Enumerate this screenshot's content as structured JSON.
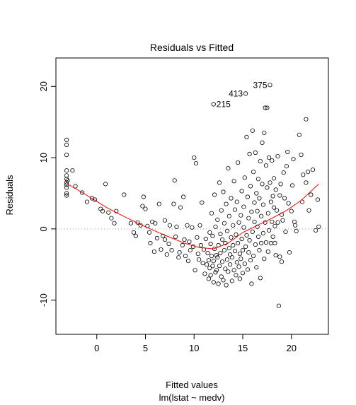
{
  "chart_data": {
    "type": "scatter",
    "title": "Residuals vs Fitted",
    "xlabel": "Fitted values",
    "sublabel": "lm(lstat ~ medv)",
    "ylabel": "Residuals",
    "xlim": [
      -4.2,
      23.8
    ],
    "ylim": [
      -14.8,
      24.0
    ],
    "x_ticks": [
      0,
      5,
      10,
      15,
      20
    ],
    "y_ticks": [
      -10,
      0,
      10,
      20
    ],
    "x_tick_labels": [
      "0",
      "5",
      "10",
      "15",
      "20"
    ],
    "y_tick_labels": [
      "-10",
      "0",
      "10",
      "20"
    ],
    "reference_line": 0,
    "smoother_color": "#ff0000",
    "reference_color": "#9a9a9a",
    "labeled_points": [
      {
        "label": "375",
        "x": 17.8,
        "y": 20.2
      },
      {
        "label": "413",
        "x": 15.3,
        "y": 19.0
      },
      {
        "label": "215",
        "x": 12.0,
        "y": 17.5
      }
    ],
    "smoother": [
      [
        -3.0,
        6.3
      ],
      [
        -1.0,
        4.7
      ],
      [
        1.0,
        3.0
      ],
      [
        3.0,
        1.6
      ],
      [
        5.0,
        0.3
      ],
      [
        7.0,
        -0.9
      ],
      [
        9.0,
        -2.0
      ],
      [
        10.5,
        -2.6
      ],
      [
        12.0,
        -2.8
      ],
      [
        13.5,
        -2.0
      ],
      [
        15.0,
        -0.5
      ],
      [
        16.5,
        0.5
      ],
      [
        18.0,
        1.5
      ],
      [
        19.5,
        2.6
      ],
      [
        21.0,
        4.0
      ],
      [
        22.8,
        6.3
      ]
    ],
    "points": [
      [
        -3.1,
        12.5
      ],
      [
        -3.1,
        11.8
      ],
      [
        -3.1,
        10.4
      ],
      [
        -3.1,
        8.2
      ],
      [
        -3.1,
        7.5
      ],
      [
        -3.1,
        7.0
      ],
      [
        -3.1,
        6.5
      ],
      [
        -3.1,
        6.2
      ],
      [
        -3.1,
        5.8
      ],
      [
        -3.1,
        5.0
      ],
      [
        -3.1,
        4.7
      ],
      [
        -3.0,
        6.8
      ],
      [
        -2.5,
        8.2
      ],
      [
        -2.2,
        6.0
      ],
      [
        -1.5,
        5.1
      ],
      [
        -1.0,
        3.8
      ],
      [
        -0.5,
        4.3
      ],
      [
        -0.2,
        4.1
      ],
      [
        0.4,
        2.8
      ],
      [
        0.6,
        2.5
      ],
      [
        0.9,
        6.3
      ],
      [
        1.2,
        2.3
      ],
      [
        1.5,
        1.5
      ],
      [
        1.8,
        0.8
      ],
      [
        2.0,
        2.5
      ],
      [
        2.8,
        4.8
      ],
      [
        3.5,
        0.8
      ],
      [
        3.8,
        -0.5
      ],
      [
        4.0,
        -1.0
      ],
      [
        4.2,
        0.9
      ],
      [
        4.5,
        0.5
      ],
      [
        4.7,
        3.2
      ],
      [
        4.8,
        4.5
      ],
      [
        5.0,
        2.8
      ],
      [
        5.2,
        0.4
      ],
      [
        5.4,
        -0.5
      ],
      [
        5.5,
        -2.0
      ],
      [
        5.7,
        1.0
      ],
      [
        5.9,
        -3.2
      ],
      [
        6.0,
        0.8
      ],
      [
        6.2,
        -1.3
      ],
      [
        6.4,
        3.5
      ],
      [
        6.6,
        -2.9
      ],
      [
        6.8,
        -1.0
      ],
      [
        7.0,
        -1.5
      ],
      [
        7.0,
        1.2
      ],
      [
        7.2,
        -3.6
      ],
      [
        7.4,
        -2.1
      ],
      [
        7.5,
        0.5
      ],
      [
        7.7,
        -3.0
      ],
      [
        7.9,
        3.5
      ],
      [
        8.0,
        6.8
      ],
      [
        8.1,
        -1.1
      ],
      [
        8.2,
        0.3
      ],
      [
        8.4,
        -4.0
      ],
      [
        8.5,
        -3.3
      ],
      [
        8.6,
        3.0
      ],
      [
        8.8,
        -2.3
      ],
      [
        8.9,
        4.5
      ],
      [
        9.0,
        -1.5
      ],
      [
        9.1,
        -3.8
      ],
      [
        9.3,
        0.5
      ],
      [
        9.4,
        -4.5
      ],
      [
        9.5,
        -1.8
      ],
      [
        9.6,
        -3.0
      ],
      [
        9.8,
        0.2
      ],
      [
        9.9,
        -2.5
      ],
      [
        10.0,
        10.0
      ],
      [
        10.1,
        -5.8
      ],
      [
        10.2,
        9.2
      ],
      [
        10.3,
        -1.2
      ],
      [
        10.4,
        -3.5
      ],
      [
        10.5,
        -4.3
      ],
      [
        10.6,
        0.5
      ],
      [
        10.7,
        -2.3
      ],
      [
        10.8,
        3.7
      ],
      [
        10.9,
        -4.8
      ],
      [
        11.0,
        -2.9
      ],
      [
        11.1,
        -6.3
      ],
      [
        11.2,
        -1.4
      ],
      [
        11.3,
        -5.0
      ],
      [
        11.4,
        -3.4
      ],
      [
        11.5,
        -7.0
      ],
      [
        11.5,
        -4.4
      ],
      [
        11.6,
        -0.5
      ],
      [
        11.6,
        -5.5
      ],
      [
        11.7,
        -2.1
      ],
      [
        11.7,
        -6.5
      ],
      [
        11.8,
        -3.8
      ],
      [
        11.8,
        2.2
      ],
      [
        11.9,
        -5.2
      ],
      [
        11.9,
        -1.0
      ],
      [
        12.0,
        17.5
      ],
      [
        12.0,
        -4.5
      ],
      [
        12.0,
        -7.5
      ],
      [
        12.1,
        -2.8
      ],
      [
        12.1,
        4.8
      ],
      [
        12.2,
        -6.1
      ],
      [
        12.2,
        0.3
      ],
      [
        12.3,
        -3.7
      ],
      [
        12.3,
        -5.8
      ],
      [
        12.4,
        1.3
      ],
      [
        12.4,
        -4.0
      ],
      [
        12.5,
        -7.7
      ],
      [
        12.5,
        -2.3
      ],
      [
        12.6,
        6.5
      ],
      [
        12.6,
        -5.2
      ],
      [
        12.7,
        -0.7
      ],
      [
        12.7,
        -3.4
      ],
      [
        12.8,
        -6.7
      ],
      [
        12.8,
        2.6
      ],
      [
        12.9,
        -4.6
      ],
      [
        12.9,
        -1.5
      ],
      [
        13.0,
        -7.2
      ],
      [
        13.0,
        5.2
      ],
      [
        13.1,
        -3.0
      ],
      [
        13.1,
        0.8
      ],
      [
        13.2,
        -5.6
      ],
      [
        13.2,
        -2.0
      ],
      [
        13.3,
        -7.9
      ],
      [
        13.3,
        3.5
      ],
      [
        13.4,
        -4.3
      ],
      [
        13.4,
        -0.3
      ],
      [
        13.5,
        8.5
      ],
      [
        13.5,
        -6.0
      ],
      [
        13.6,
        -2.7
      ],
      [
        13.6,
        1.8
      ],
      [
        13.7,
        -5.0
      ],
      [
        13.7,
        -3.6
      ],
      [
        13.8,
        -1.2
      ],
      [
        13.8,
        4.3
      ],
      [
        13.9,
        -7.3
      ],
      [
        13.9,
        -4.0
      ],
      [
        14.0,
        0.5
      ],
      [
        14.0,
        -2.3
      ],
      [
        14.1,
        -5.8
      ],
      [
        14.1,
        6.7
      ],
      [
        14.2,
        -3.1
      ],
      [
        14.2,
        2.7
      ],
      [
        14.3,
        -6.5
      ],
      [
        14.3,
        -0.8
      ],
      [
        14.4,
        -4.7
      ],
      [
        14.4,
        3.8
      ],
      [
        14.5,
        -2.0
      ],
      [
        14.5,
        9.3
      ],
      [
        14.6,
        -5.3
      ],
      [
        14.6,
        0.9
      ],
      [
        14.7,
        -3.5
      ],
      [
        14.7,
        -7.0
      ],
      [
        14.8,
        1.9
      ],
      [
        14.8,
        -4.2
      ],
      [
        14.9,
        5.3
      ],
      [
        14.9,
        -1.4
      ],
      [
        15.0,
        -6.2
      ],
      [
        15.0,
        -3.0
      ],
      [
        15.1,
        3.1
      ],
      [
        15.1,
        0.2
      ],
      [
        15.2,
        -4.9
      ],
      [
        15.2,
        7.2
      ],
      [
        15.3,
        19.0
      ],
      [
        15.3,
        -2.5
      ],
      [
        15.4,
        12.9
      ],
      [
        15.4,
        -0.9
      ],
      [
        15.5,
        -5.7
      ],
      [
        15.5,
        4.5
      ],
      [
        15.6,
        1.5
      ],
      [
        15.6,
        -3.3
      ],
      [
        15.7,
        10.5
      ],
      [
        15.7,
        -1.6
      ],
      [
        15.8,
        6.0
      ],
      [
        15.8,
        -4.4
      ],
      [
        15.9,
        2.4
      ],
      [
        15.9,
        -7.7
      ],
      [
        16.0,
        13.8
      ],
      [
        16.0,
        -0.4
      ],
      [
        16.1,
        8.0
      ],
      [
        16.1,
        -3.8
      ],
      [
        16.2,
        3.7
      ],
      [
        16.2,
        1.0
      ],
      [
        16.3,
        -2.2
      ],
      [
        16.3,
        10.7
      ],
      [
        16.4,
        5.0
      ],
      [
        16.4,
        -5.4
      ],
      [
        16.5,
        0.3
      ],
      [
        16.5,
        2.5
      ],
      [
        16.6,
        -1.1
      ],
      [
        16.6,
        7.0
      ],
      [
        16.7,
        -3.0
      ],
      [
        16.7,
        4.3
      ],
      [
        16.8,
        9.5
      ],
      [
        16.8,
        -6.9
      ],
      [
        16.9,
        1.8
      ],
      [
        16.9,
        -2.0
      ],
      [
        17.0,
        12.1
      ],
      [
        17.0,
        6.3
      ],
      [
        17.1,
        -0.6
      ],
      [
        17.1,
        3.4
      ],
      [
        17.2,
        -4.2
      ],
      [
        17.2,
        13.5
      ],
      [
        17.3,
        17.0
      ],
      [
        17.3,
        0.9
      ],
      [
        17.4,
        8.9
      ],
      [
        17.4,
        -1.9
      ],
      [
        17.5,
        17.0
      ],
      [
        17.5,
        5.8
      ],
      [
        17.6,
        -3.2
      ],
      [
        17.6,
        2.2
      ],
      [
        17.7,
        10.0
      ],
      [
        17.7,
        -0.2
      ],
      [
        17.8,
        20.2
      ],
      [
        17.8,
        6.5
      ],
      [
        17.9,
        3.8
      ],
      [
        17.9,
        -2.0
      ],
      [
        18.0,
        9.6
      ],
      [
        18.0,
        1.0
      ],
      [
        18.1,
        4.6
      ],
      [
        18.1,
        -1.1
      ],
      [
        18.2,
        7.1
      ],
      [
        18.2,
        3.0
      ],
      [
        18.3,
        0.4
      ],
      [
        18.3,
        -2.0
      ],
      [
        18.4,
        5.5
      ],
      [
        18.4,
        -3.7
      ],
      [
        18.5,
        2.6
      ],
      [
        18.6,
        10.2
      ],
      [
        18.6,
        0.9
      ],
      [
        18.7,
        -10.8
      ],
      [
        18.8,
        4.7
      ],
      [
        18.8,
        -3.9
      ],
      [
        18.9,
        6.3
      ],
      [
        19.0,
        -4.6
      ],
      [
        19.0,
        2.0
      ],
      [
        19.1,
        1.2
      ],
      [
        19.2,
        7.9
      ],
      [
        19.3,
        4.3
      ],
      [
        19.4,
        -0.4
      ],
      [
        19.5,
        8.8
      ],
      [
        19.6,
        10.8
      ],
      [
        19.7,
        3.6
      ],
      [
        19.8,
        -3.3
      ],
      [
        20.0,
        2.5
      ],
      [
        20.1,
        6.1
      ],
      [
        20.2,
        9.8
      ],
      [
        20.3,
        1.0
      ],
      [
        20.4,
        0.5
      ],
      [
        20.5,
        -0.3
      ],
      [
        20.8,
        13.2
      ],
      [
        21.0,
        10.4
      ],
      [
        21.1,
        3.8
      ],
      [
        21.2,
        7.6
      ],
      [
        21.5,
        15.4
      ],
      [
        21.5,
        6.5
      ],
      [
        21.7,
        8.0
      ],
      [
        21.8,
        2.6
      ],
      [
        22.0,
        4.8
      ],
      [
        22.2,
        8.3
      ],
      [
        22.5,
        -0.2
      ],
      [
        22.7,
        4.1
      ],
      [
        22.8,
        0.3
      ]
    ]
  }
}
